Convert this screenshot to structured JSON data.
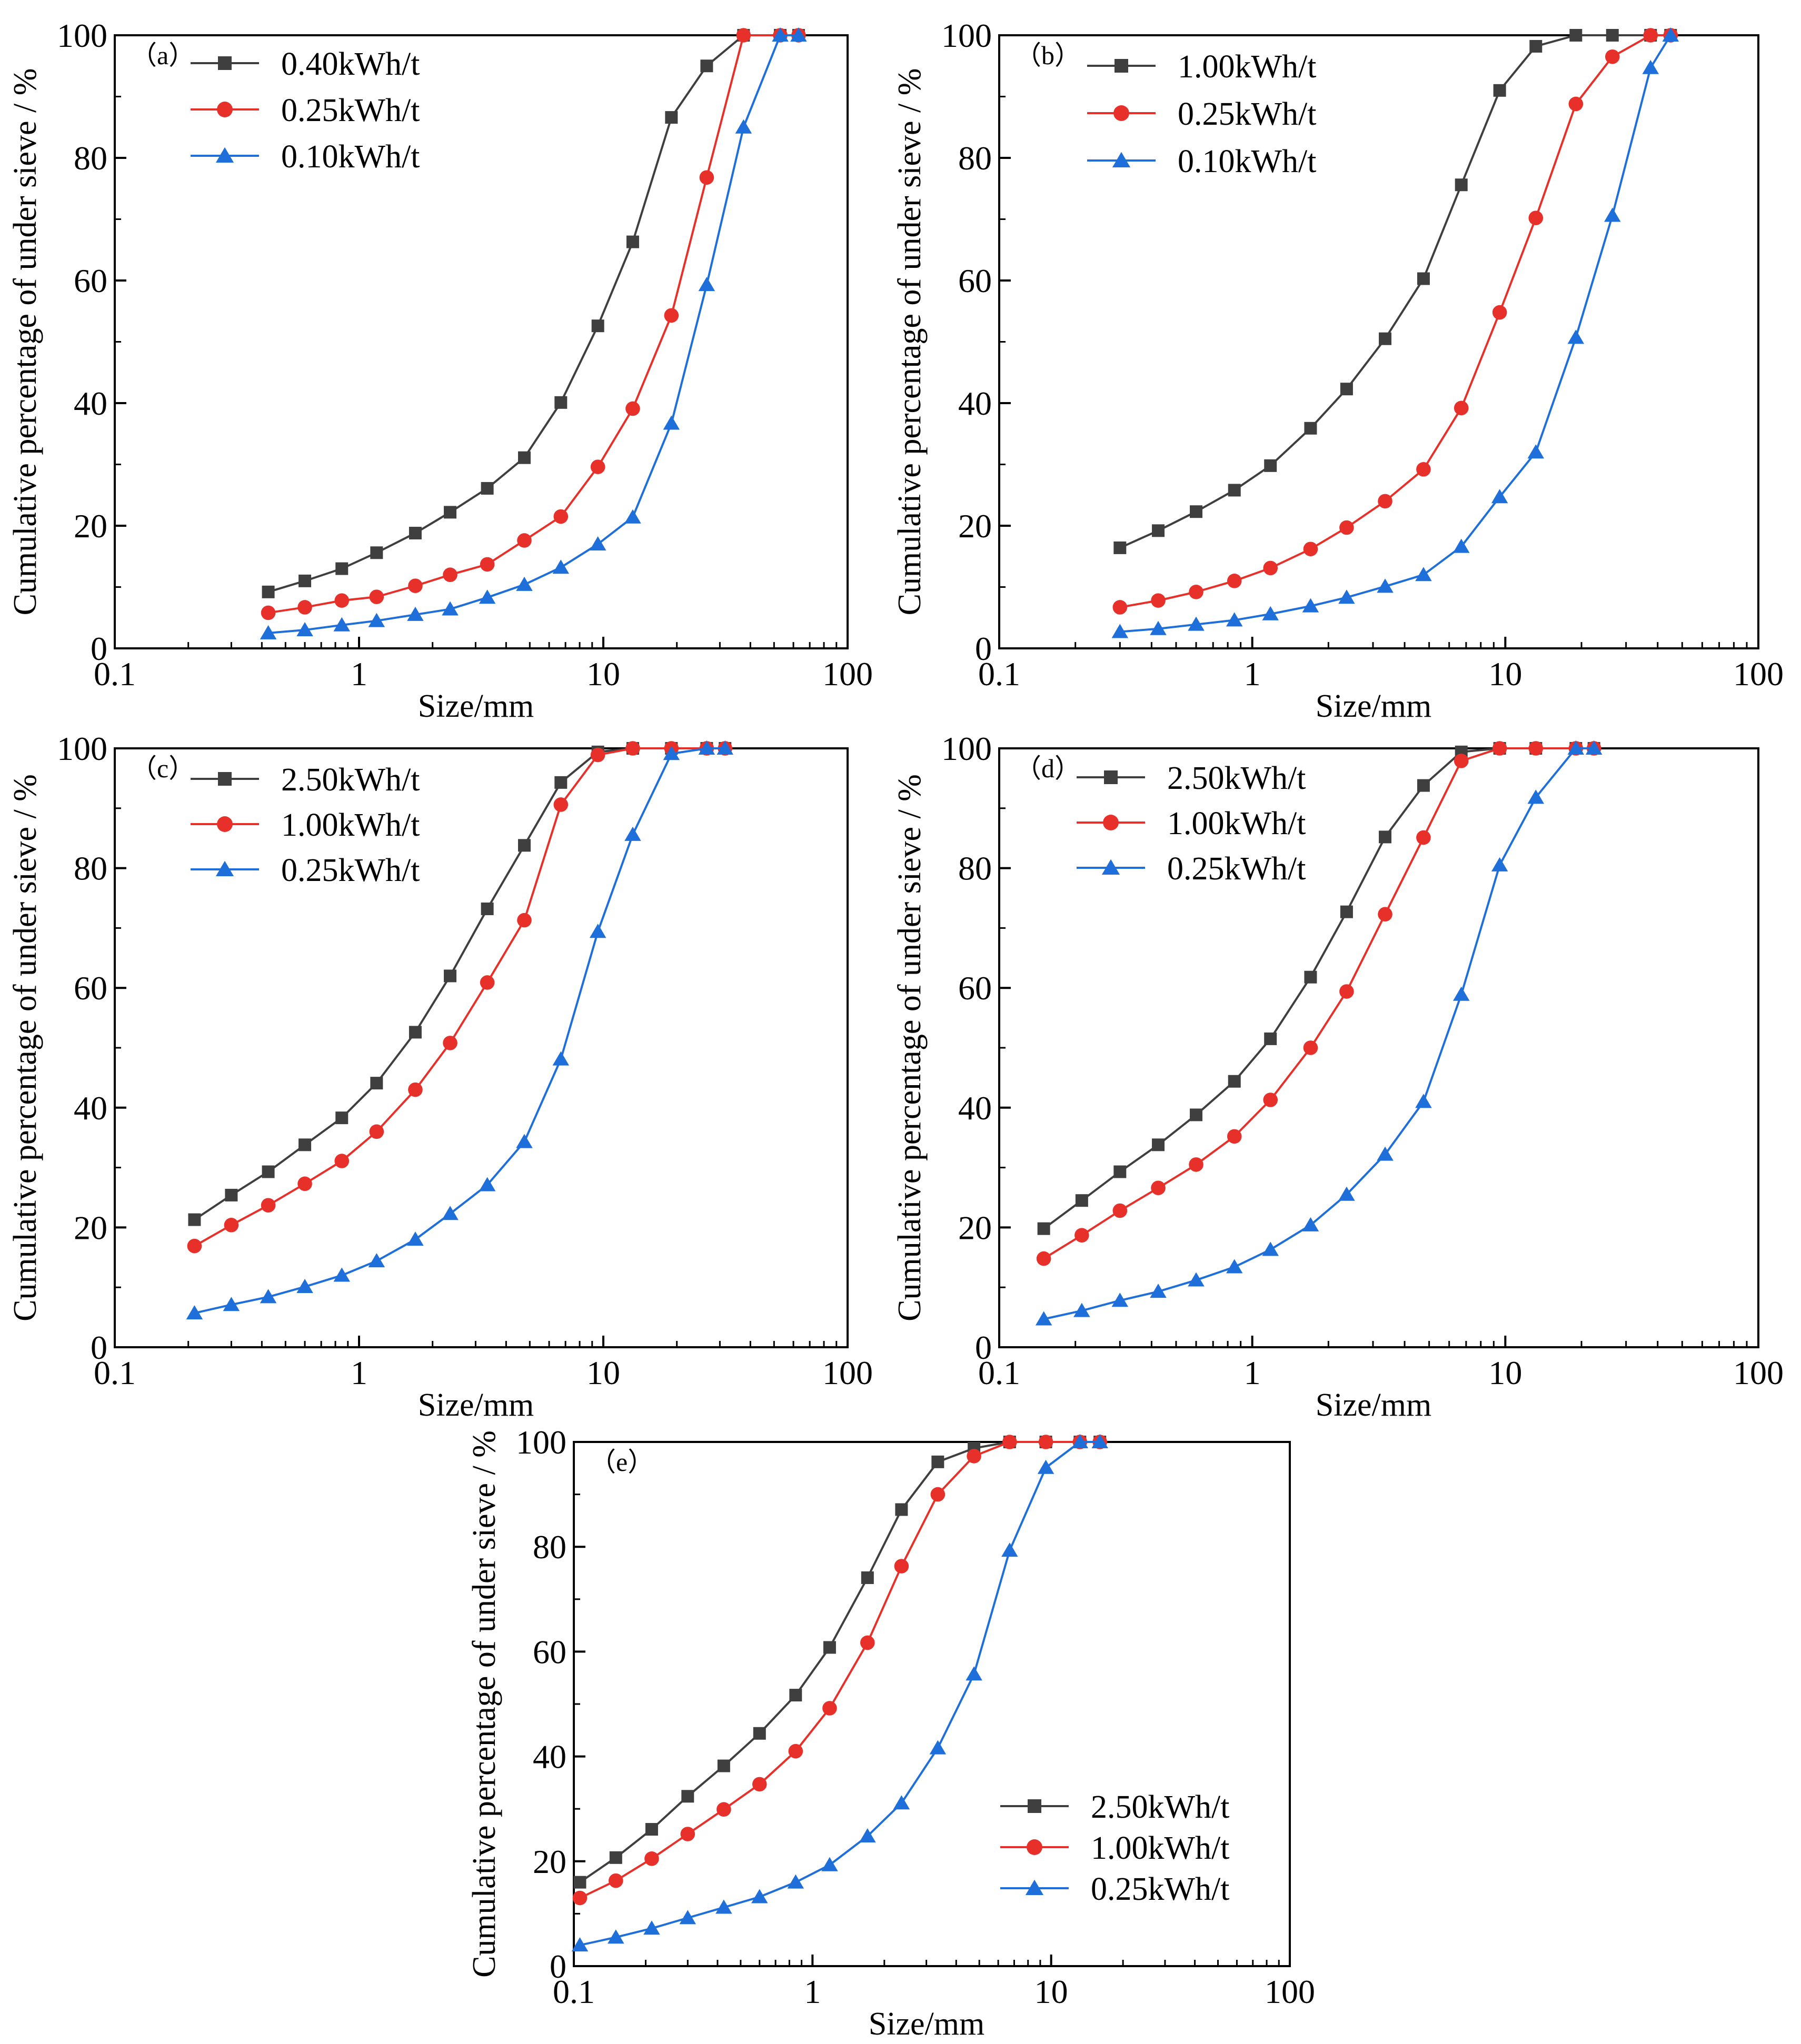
{
  "figure": {
    "colors": {
      "black": "#3f3f3f",
      "red": "#e8302a",
      "blue": "#1e6fd9"
    }
  },
  "chart_data": [
    {
      "id": "a",
      "type": "line",
      "panel_label": "（a）",
      "xscale": "log",
      "xlim": [
        0.1,
        100
      ],
      "ylim": [
        0,
        100
      ],
      "xticks": [
        "0.1",
        "1",
        "10",
        "100"
      ],
      "yticks": [
        "0",
        "20",
        "40",
        "60",
        "80",
        "100"
      ],
      "xlabel": "Size/mm",
      "ylabel": "Cumulative percentage of under sieve / %",
      "legend_position": "top-left",
      "series": [
        {
          "name": "0.40kWh/t",
          "color": "#3f3f3f",
          "marker": "square",
          "x": [
            0.425,
            0.6,
            0.85,
            1.18,
            1.7,
            2.36,
            3.35,
            4.75,
            6.7,
            9.5,
            13.2,
            19,
            26.5,
            37.5,
            53,
            63
          ],
          "y": [
            9.2,
            11,
            13,
            15.6,
            18.8,
            22.2,
            26.1,
            31.1,
            40.1,
            52.6,
            66.3,
            86.6,
            95,
            100,
            100,
            100
          ]
        },
        {
          "name": "0.25kWh/t",
          "color": "#e8302a",
          "marker": "circle",
          "x": [
            0.425,
            0.6,
            0.85,
            1.18,
            1.7,
            2.36,
            3.35,
            4.75,
            6.7,
            9.5,
            13.2,
            19,
            26.5,
            37.5,
            53,
            63
          ],
          "y": [
            5.8,
            6.7,
            7.8,
            8.4,
            10.2,
            12,
            13.7,
            17.6,
            21.5,
            29.6,
            39.1,
            54.3,
            76.8,
            100,
            100,
            100
          ]
        },
        {
          "name": "0.10kWh/t",
          "color": "#1e6fd9",
          "marker": "triangle",
          "x": [
            0.425,
            0.6,
            0.85,
            1.18,
            1.7,
            2.36,
            3.35,
            4.75,
            6.7,
            9.5,
            13.2,
            19,
            26.5,
            37.5,
            53,
            63
          ],
          "y": [
            2.5,
            3,
            3.8,
            4.5,
            5.5,
            6.4,
            8.3,
            10.4,
            13.2,
            17,
            21.4,
            36.7,
            59.3,
            85,
            100,
            100
          ]
        }
      ]
    },
    {
      "id": "b",
      "type": "line",
      "panel_label": "（b）",
      "xscale": "log",
      "xlim": [
        0.1,
        100
      ],
      "ylim": [
        0,
        100
      ],
      "xticks": [
        "0.1",
        "1",
        "10",
        "100"
      ],
      "yticks": [
        "0",
        "20",
        "40",
        "60",
        "80",
        "100"
      ],
      "xlabel": "Size/mm",
      "ylabel": "Cumulative percentage of under sieve / %",
      "legend_position": "top-left",
      "series": [
        {
          "name": "1.00kWh/t",
          "color": "#3f3f3f",
          "marker": "square",
          "x": [
            0.3,
            0.425,
            0.6,
            0.85,
            1.18,
            1.7,
            2.36,
            3.35,
            4.75,
            6.7,
            9.5,
            13.2,
            19,
            26.5,
            37.5,
            45
          ],
          "y": [
            16.4,
            19.2,
            22.3,
            25.8,
            29.8,
            35.9,
            42.3,
            50.5,
            60.3,
            75.6,
            91,
            98.2,
            100,
            100,
            100,
            100
          ]
        },
        {
          "name": "0.25kWh/t",
          "color": "#e8302a",
          "marker": "circle",
          "x": [
            0.3,
            0.425,
            0.6,
            0.85,
            1.18,
            1.7,
            2.36,
            3.35,
            4.75,
            6.7,
            9.5,
            13.2,
            19,
            26.5,
            37.5,
            45
          ],
          "y": [
            6.7,
            7.8,
            9.2,
            11,
            13.1,
            16.2,
            19.7,
            24,
            29.2,
            39.2,
            54.8,
            70.2,
            88.8,
            96.5,
            100,
            100
          ]
        },
        {
          "name": "0.10kWh/t",
          "color": "#1e6fd9",
          "marker": "triangle",
          "x": [
            0.3,
            0.425,
            0.6,
            0.85,
            1.18,
            1.7,
            2.36,
            3.35,
            4.75,
            6.7,
            9.5,
            13.2,
            19,
            26.5,
            37.5,
            45
          ],
          "y": [
            2.7,
            3.2,
            3.9,
            4.6,
            5.6,
            6.9,
            8.3,
            10.1,
            12,
            16.6,
            24.7,
            32,
            50.7,
            70.6,
            94.7,
            100
          ]
        }
      ]
    },
    {
      "id": "c",
      "type": "line",
      "panel_label": "（c）",
      "xscale": "log",
      "xlim": [
        0.1,
        100
      ],
      "ylim": [
        0,
        100
      ],
      "xticks": [
        "0.1",
        "1",
        "10",
        "100"
      ],
      "yticks": [
        "0",
        "20",
        "40",
        "60",
        "80",
        "100"
      ],
      "xlabel": "Size/mm",
      "ylabel": "Cumulative percentage of under sieve / %",
      "legend_position": "top-left",
      "series": [
        {
          "name": "2.50kWh/t",
          "color": "#3f3f3f",
          "marker": "square",
          "x": [
            0.212,
            0.3,
            0.425,
            0.6,
            0.85,
            1.18,
            1.7,
            2.36,
            3.35,
            4.75,
            6.7,
            9.5,
            13.2,
            19,
            26.5,
            31.5
          ],
          "y": [
            21.3,
            25.4,
            29.3,
            33.8,
            38.3,
            44.1,
            52.6,
            62,
            73.2,
            83.8,
            94.3,
            99.4,
            100,
            100,
            100,
            100
          ]
        },
        {
          "name": "1.00kWh/t",
          "color": "#e8302a",
          "marker": "circle",
          "x": [
            0.212,
            0.3,
            0.425,
            0.6,
            0.85,
            1.18,
            1.7,
            2.36,
            3.35,
            4.75,
            6.7,
            9.5,
            13.2,
            19,
            26.5,
            31.5
          ],
          "y": [
            16.9,
            20.4,
            23.7,
            27.3,
            31.1,
            36,
            43,
            50.8,
            60.9,
            71.3,
            90.6,
            98.9,
            100,
            100,
            100,
            100
          ]
        },
        {
          "name": "0.25kWh/t",
          "color": "#1e6fd9",
          "marker": "triangle",
          "x": [
            0.212,
            0.3,
            0.425,
            0.6,
            0.85,
            1.18,
            1.7,
            2.36,
            3.35,
            4.75,
            6.7,
            9.5,
            13.2,
            19,
            26.5,
            31.5
          ],
          "y": [
            5.7,
            7.1,
            8.4,
            10.1,
            12,
            14.4,
            18,
            22.3,
            27.1,
            34.3,
            48.1,
            69.4,
            85.6,
            99.1,
            100,
            100
          ]
        }
      ]
    },
    {
      "id": "d",
      "type": "line",
      "panel_label": "（d）",
      "xscale": "log",
      "xlim": [
        0.1,
        100
      ],
      "ylim": [
        0,
        100
      ],
      "xticks": [
        "0.1",
        "1",
        "10",
        "100"
      ],
      "yticks": [
        "0",
        "20",
        "40",
        "60",
        "80",
        "100"
      ],
      "xlabel": "Size/mm",
      "ylabel": "Cumulative percentage of under sieve / %",
      "legend_position": "top-left",
      "series": [
        {
          "name": "2.50kWh/t",
          "color": "#3f3f3f",
          "marker": "square",
          "x": [
            0.15,
            0.212,
            0.3,
            0.425,
            0.6,
            0.85,
            1.18,
            1.7,
            2.36,
            3.35,
            4.75,
            6.7,
            9.5,
            13.2,
            19,
            22.4
          ],
          "y": [
            19.8,
            24.5,
            29.3,
            33.8,
            38.8,
            44.4,
            51.5,
            61.8,
            72.7,
            85.2,
            93.8,
            99.4,
            100,
            100,
            100,
            100
          ]
        },
        {
          "name": "1.00kWh/t",
          "color": "#e8302a",
          "marker": "circle",
          "x": [
            0.15,
            0.212,
            0.3,
            0.425,
            0.6,
            0.85,
            1.18,
            1.7,
            2.36,
            3.35,
            4.75,
            6.7,
            9.5,
            13.2,
            19,
            22.4
          ],
          "y": [
            14.8,
            18.7,
            22.8,
            26.6,
            30.5,
            35.2,
            41.3,
            50,
            59.4,
            72.3,
            85.1,
            97.9,
            100,
            100,
            100,
            100
          ]
        },
        {
          "name": "0.25kWh/t",
          "color": "#1e6fd9",
          "marker": "triangle",
          "x": [
            0.15,
            0.212,
            0.3,
            0.425,
            0.6,
            0.85,
            1.18,
            1.7,
            2.36,
            3.35,
            4.75,
            6.7,
            9.5,
            13.2,
            19,
            22.4
          ],
          "y": [
            4.7,
            6.1,
            7.8,
            9.3,
            11.2,
            13.4,
            16.3,
            20.4,
            25.5,
            32.2,
            41,
            58.9,
            80.5,
            91.8,
            100,
            100
          ]
        }
      ]
    },
    {
      "id": "e",
      "type": "line",
      "panel_label": "（e）",
      "xscale": "log",
      "xlim": [
        0.1,
        100
      ],
      "ylim": [
        0,
        100
      ],
      "xticks": [
        "0.1",
        "1",
        "10",
        "100"
      ],
      "yticks": [
        "0",
        "20",
        "40",
        "60",
        "80",
        "100"
      ],
      "xlabel": "Size/mm",
      "ylabel": "Cumulative percentage of under sieve / %",
      "legend_position": "bottom-right",
      "series": [
        {
          "name": "2.50kWh/t",
          "color": "#3f3f3f",
          "marker": "square",
          "x": [
            0.106,
            0.15,
            0.212,
            0.3,
            0.425,
            0.6,
            0.85,
            1.18,
            1.7,
            2.36,
            3.35,
            4.75,
            6.7,
            9.5,
            13.2,
            16
          ],
          "y": [
            16,
            20.7,
            26.1,
            32.4,
            38.2,
            44.4,
            51.7,
            60.8,
            74.1,
            87.1,
            96.2,
            98.8,
            100,
            100,
            100,
            100
          ]
        },
        {
          "name": "1.00kWh/t",
          "color": "#e8302a",
          "marker": "circle",
          "x": [
            0.106,
            0.15,
            0.212,
            0.3,
            0.425,
            0.6,
            0.85,
            1.18,
            1.7,
            2.36,
            3.35,
            4.75,
            6.7,
            9.5,
            13.2,
            16
          ],
          "y": [
            13,
            16.3,
            20.5,
            25.2,
            29.9,
            34.7,
            41,
            49.2,
            61.7,
            76.3,
            90,
            97.3,
            100,
            100,
            100,
            100
          ]
        },
        {
          "name": "0.25kWh/t",
          "color": "#1e6fd9",
          "marker": "triangle",
          "x": [
            0.106,
            0.15,
            0.212,
            0.3,
            0.425,
            0.6,
            0.85,
            1.18,
            1.7,
            2.36,
            3.35,
            4.75,
            6.7,
            9.5,
            13.2,
            16
          ],
          "y": [
            4,
            5.5,
            7.2,
            9.2,
            11.2,
            13.2,
            16,
            19.3,
            24.8,
            31.1,
            41.6,
            55.7,
            79.3,
            95.1,
            100,
            100
          ]
        }
      ]
    }
  ]
}
